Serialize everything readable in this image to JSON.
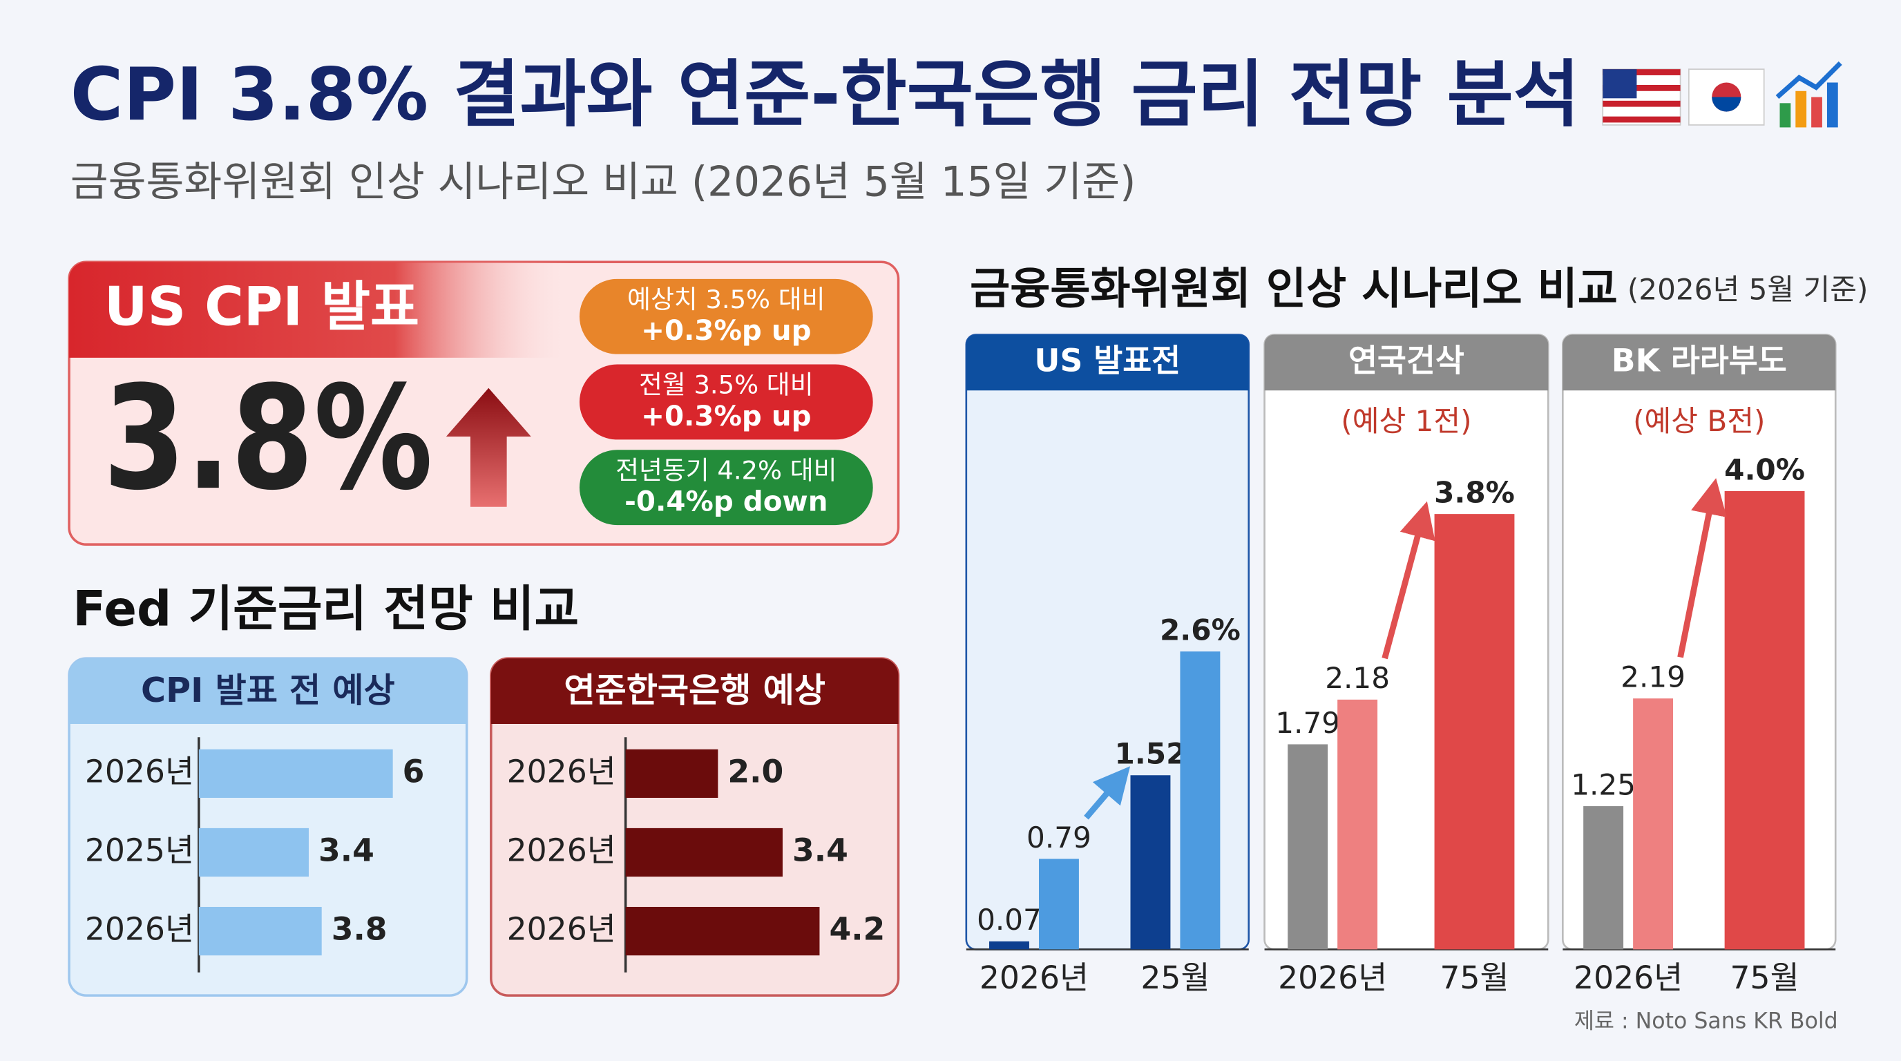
{
  "header": {
    "title": "CPI 3.8% 결과와 연준-한국은행 금리 전망 분석",
    "subtitle": "금융통화위원회 인상 시나리오 비교 (2026년 5월 15일 기준)"
  },
  "cpi": {
    "title": "US CPI 발표",
    "value": "3.8%",
    "badges": [
      [
        "예상치 3.5% 대비",
        "+0.3%p up"
      ],
      [
        "전월 3.5% 대비",
        "+0.3%p up"
      ],
      [
        "전년동기 4.2% 대비",
        "-0.4%p down"
      ]
    ]
  },
  "fed_section": {
    "title": "Fed 기준금리 전망 비교"
  },
  "scenario": {
    "title": "금융통화위원회 인상 시나리오 비교",
    "subtitle": "(2026년 5월 기준)"
  },
  "footer": "제료 : Noto Sans KR Bold",
  "chart_data": [
    {
      "type": "hbar",
      "title": "CPI 발표 전 예상",
      "categories": [
        "2026년",
        "2025년",
        "2026년"
      ],
      "values": [
        6,
        3.4,
        3.8
      ],
      "color": "#8ec3ef"
    },
    {
      "type": "hbar",
      "title": "연준한국은행 예상",
      "categories": [
        "2026년",
        "2026년",
        "2026년"
      ],
      "values": [
        2.0,
        3.4,
        4.2
      ],
      "value_labels": [
        "2.0",
        "3.4",
        "4.2"
      ],
      "color": "#6b0c0c"
    },
    {
      "type": "grouped_bar",
      "title": "US 발표전",
      "categories": [
        "2026년",
        "25월"
      ],
      "series": [
        {
          "color": "#0d3f8f",
          "values": [
            0.07,
            1.52
          ]
        },
        {
          "color": "#4d9be0",
          "values": [
            0.79,
            2.6
          ],
          "value_labels": [
            "0.79",
            "2.6%"
          ]
        }
      ]
    },
    {
      "type": "grouped_bar",
      "title": "연국건삭",
      "subtitle": "(예상 1전)",
      "categories": [
        "2026년",
        "75월"
      ],
      "series": [
        {
          "color": "#8c8c8c",
          "values": [
            1.79,
            null
          ]
        },
        {
          "color": "#ee8080",
          "values": [
            2.18,
            null
          ]
        },
        {
          "color": "#e04848",
          "values": [
            null,
            3.8
          ],
          "value_labels": [
            null,
            "3.8%"
          ]
        }
      ]
    },
    {
      "type": "grouped_bar",
      "title": "BK 라라부도",
      "subtitle": "(예상 B전)",
      "categories": [
        "2026년",
        "75월"
      ],
      "series": [
        {
          "color": "#8c8c8c",
          "values": [
            1.25,
            null
          ]
        },
        {
          "color": "#ee8080",
          "values": [
            2.19,
            null
          ]
        },
        {
          "color": "#e04848",
          "values": [
            null,
            4.0
          ],
          "value_labels": [
            null,
            "4.0%"
          ]
        }
      ]
    }
  ]
}
